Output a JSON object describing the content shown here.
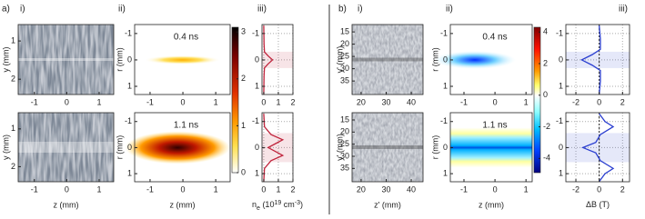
{
  "panels": [
    {
      "label": "a)",
      "columns": [
        {
          "label": "i)",
          "xlabel": "z (mm)",
          "ylabel": "y (mm)",
          "xlim": [
            -1.5,
            1.45
          ],
          "ylim": [
            2.4,
            0.57
          ],
          "xticks": [
            -1,
            0,
            1
          ],
          "yticks": [
            1,
            2
          ]
        },
        {
          "label": "ii)",
          "xlabel": "z (mm)",
          "ylabel": "r (mm)",
          "xlim": [
            -1.47,
            1.44
          ],
          "ylim": [
            1.31,
            -1.34
          ],
          "xticks": [
            -1,
            0,
            1
          ],
          "yticks": [
            -1,
            0,
            1
          ],
          "rows": [
            {
              "annotation": "0.4 ns"
            },
            {
              "annotation": "1.1 ns"
            }
          ]
        },
        {
          "label": "iii)",
          "xlim": [
            -0.12,
            2
          ],
          "ylim": [
            1.31,
            -1.34
          ],
          "xticks": [
            0,
            1,
            2
          ],
          "yticks": [
            -1,
            0,
            1
          ],
          "color": "#c0243c",
          "rows": [
            {
              "r": [
                -1.3,
                -0.6,
                -0.3,
                -0.15,
                0,
                0.15,
                0.3,
                0.6,
                1.3
              ],
              "values": [
                0,
                0.02,
                0.05,
                0.3,
                0.6,
                0.3,
                0.05,
                0.02,
                0
              ]
            },
            {
              "r": [
                -1.3,
                -0.8,
                -0.5,
                -0.3,
                -0.15,
                0,
                0.15,
                0.3,
                0.5,
                0.8,
                1.3
              ],
              "values": [
                0,
                0.05,
                0.5,
                1.3,
                0.8,
                0.3,
                0.8,
                1.3,
                0.5,
                0.05,
                0
              ]
            }
          ]
        }
      ],
      "colorbar": {
        "lim": [
          0,
          3.1
        ],
        "ticks": [
          0,
          1,
          2,
          3
        ],
        "label": {
          "base": "n",
          "sub": "e",
          "mid": " (10",
          "sup": "19",
          "unit": " cm",
          "unit_sup": "-3",
          "end": ")"
        }
      }
    },
    {
      "label": "b)",
      "columns": [
        {
          "label": "i)",
          "xlabel": "z' (mm)",
          "ylabel": "y' (mm)",
          "xlim": [
            16.4,
            44.7
          ],
          "ylim": [
            40.5,
            12
          ],
          "xticks": [
            20,
            30,
            40
          ],
          "yticks": [
            15,
            20,
            25,
            30,
            35
          ]
        },
        {
          "label": "ii)",
          "xlabel": "z (mm)",
          "ylabel": "r (mm)",
          "xlim": [
            -1.44,
            1.2
          ],
          "ylim": [
            1.31,
            -1.34
          ],
          "xticks": [
            -1,
            0,
            1
          ],
          "yticks": [
            -1,
            0,
            1
          ],
          "rows": [
            {
              "annotation": "0.4 ns"
            },
            {
              "annotation": "1.1 ns"
            }
          ]
        },
        {
          "label": "iii)",
          "xlim": [
            -2.86,
            2.6
          ],
          "ylim": [
            1.31,
            -1.34
          ],
          "xticks": [
            -2,
            0,
            2
          ],
          "yticks": [
            -1,
            0,
            1
          ],
          "color": "#2a3ed0",
          "rows": [
            {
              "r": [
                -1.3,
                -0.8,
                -0.4,
                -0.2,
                0,
                0.2,
                0.4,
                0.8,
                1.3
              ],
              "values": [
                0,
                0.1,
                0.1,
                -0.6,
                -1.5,
                -0.6,
                0.1,
                0.1,
                0
              ]
            },
            {
              "r": [
                -1.3,
                -1,
                -0.8,
                -0.5,
                -0.2,
                0,
                0.2,
                0.5,
                0.8,
                1,
                1.3
              ],
              "values": [
                0,
                0.5,
                1.2,
                0.1,
                -0.3,
                -1.4,
                -0.3,
                0.1,
                1.2,
                0.5,
                0
              ]
            }
          ]
        }
      ],
      "colorbar": {
        "lim": [
          -4.9,
          4.3
        ],
        "ticks": [
          -4,
          -2,
          0,
          2,
          4
        ],
        "label": {
          "base": "ΔB (T)"
        }
      }
    }
  ]
}
